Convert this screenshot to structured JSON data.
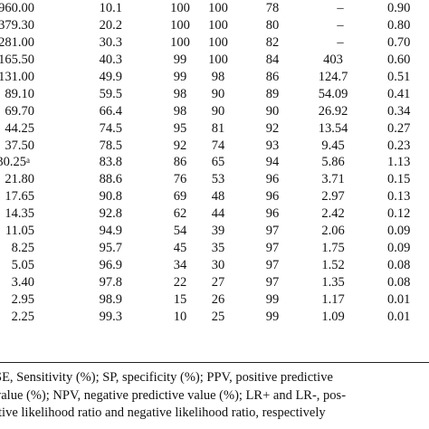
{
  "table": {
    "rows": [
      [
        "960.00",
        "10.1",
        "100",
        "100",
        "78",
        "–",
        "0.90"
      ],
      [
        "379.30",
        "20.2",
        "100",
        "100",
        "80",
        "–",
        "0.80"
      ],
      [
        "281.00",
        "30.3",
        "100",
        "100",
        "82",
        "–",
        "0.70"
      ],
      [
        "165.50",
        "40.3",
        "99",
        "100",
        "84",
        "403",
        "0.60"
      ],
      [
        "131.00",
        "49.9",
        "99",
        "98",
        "86",
        "124.7",
        "0.51"
      ],
      [
        "89.10",
        "59.5",
        "98",
        "90",
        "89",
        "54.09",
        "0.41"
      ],
      [
        "69.70",
        "66.4",
        "98",
        "90",
        "90",
        "26.92",
        "0.34"
      ],
      [
        "44.25",
        "74.5",
        "95",
        "81",
        "92",
        "13.54",
        "0.27"
      ],
      [
        "37.50",
        "78.5",
        "92",
        "74",
        "93",
        "9.45",
        "0.23"
      ],
      [
        "30.25",
        "83.8",
        "86",
        "65",
        "94",
        "5.86",
        "1.13"
      ],
      [
        "21.80",
        "88.6",
        "76",
        "53",
        "96",
        "3.71",
        "0.15"
      ],
      [
        "17.65",
        "90.8",
        "69",
        "48",
        "96",
        "2.97",
        "0.13"
      ],
      [
        "14.35",
        "92.8",
        "62",
        "44",
        "96",
        "2.42",
        "0.12"
      ],
      [
        "11.05",
        "94.9",
        "54",
        "39",
        "97",
        "2.06",
        "0.09"
      ],
      [
        "8.25",
        "95.7",
        "45",
        "35",
        "97",
        "1.75",
        "0.09"
      ],
      [
        "5.05",
        "96.9",
        "34",
        "30",
        "97",
        "1.52",
        "0.08"
      ],
      [
        "3.40",
        "97.8",
        "22",
        "27",
        "97",
        "1.35",
        "0.08"
      ],
      [
        "2.95",
        "98.9",
        "15",
        "26",
        "99",
        "1.17",
        "0.01"
      ],
      [
        "2.25",
        "99.3",
        "10",
        "25",
        "99",
        "1.09",
        "0.01"
      ]
    ],
    "superscript_row": 9,
    "superscript_text": "a"
  },
  "footnote": {
    "lines": [
      "SE, Sensitivity (%); SP, specificity (%); PPV, positive predictive",
      "value (%); NPV, negative predictive value (%); LR+ and LR-, pos-",
      "itive likelihood ratio and negative likelihood ratio, respectively"
    ]
  }
}
